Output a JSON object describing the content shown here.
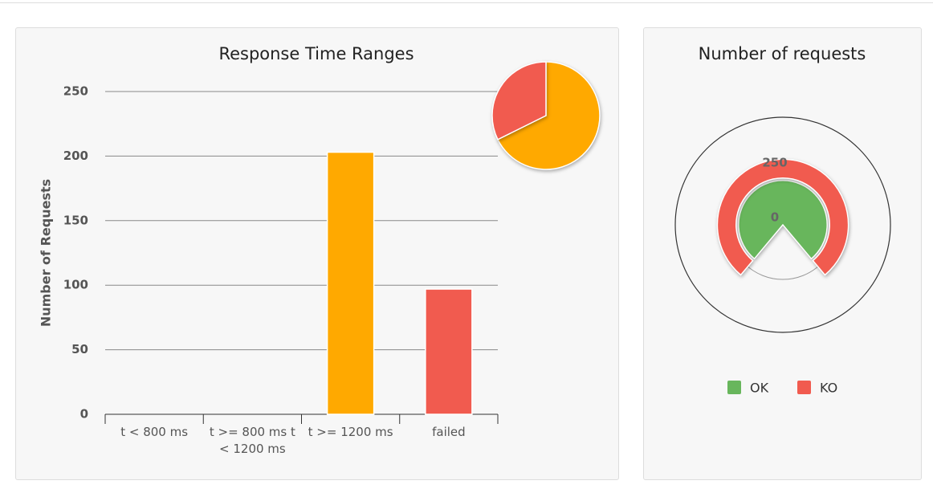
{
  "chart_data": [
    {
      "type": "bar",
      "title": "Response Time Ranges",
      "ylabel": "Number of Requests",
      "categories": [
        "t < 800 ms",
        "t >= 800 ms t < 1200 ms",
        "t >= 1200 ms",
        "failed"
      ],
      "values": [
        0,
        0,
        203,
        97
      ],
      "colors": [
        "#ffa900",
        "#ffa900",
        "#ffa900",
        "#f15b4f"
      ],
      "ylim": [
        0,
        250
      ],
      "yticks": [
        0,
        50,
        100,
        150,
        200,
        250
      ],
      "grid": true
    },
    {
      "type": "pie",
      "values": [
        203,
        97
      ],
      "colors": [
        "#ffa900",
        "#f15b4f"
      ]
    },
    {
      "type": "radial",
      "title": "Number of requests",
      "series": [
        {
          "name": "OK",
          "color": "#68b65c",
          "values": [
            203
          ]
        },
        {
          "name": "KO",
          "color": "#f15b4f",
          "values": [
            97
          ]
        }
      ],
      "ylim": [
        0,
        250
      ],
      "yticks": [
        0,
        250
      ],
      "legend": "bottom"
    }
  ]
}
